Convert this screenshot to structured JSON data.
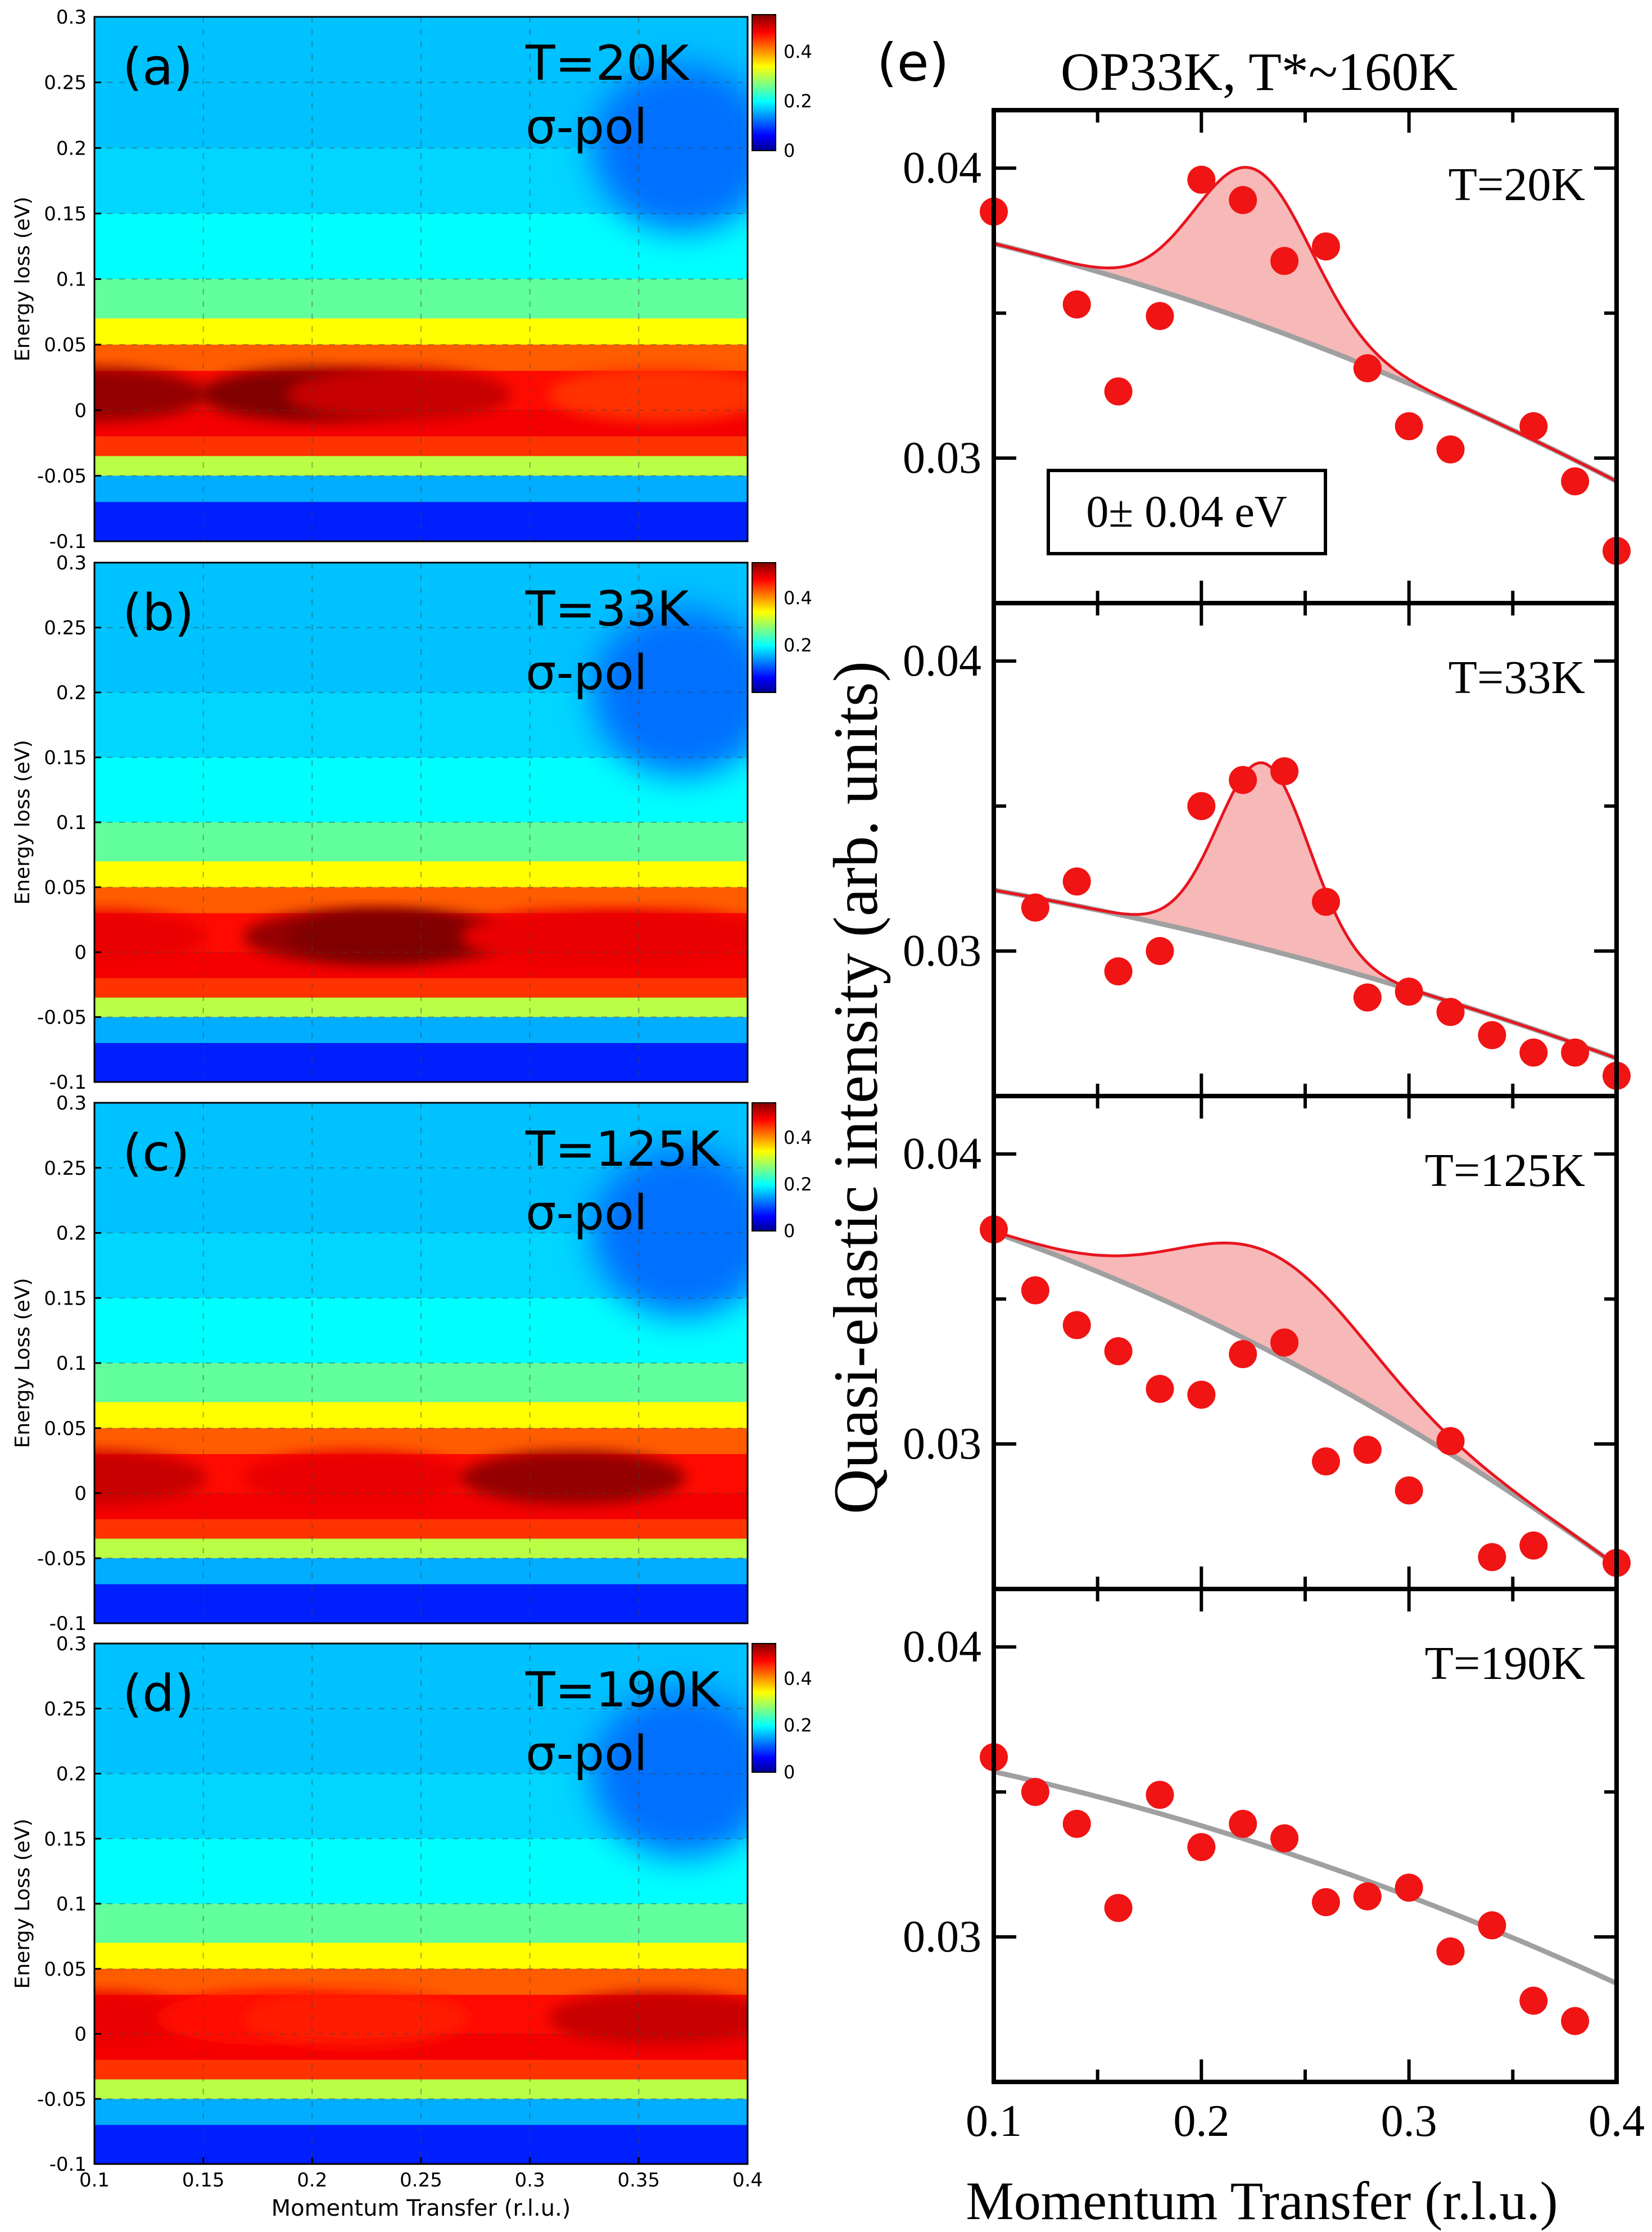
{
  "figure_label": "(e)",
  "chart_data": [
    {
      "type": "heatmap",
      "panel": "(a)",
      "temperature": "T=20K",
      "polarization": "σ-pol",
      "xlabel": "",
      "ylabel": "Energy loss (eV)",
      "xlim": [
        0.1,
        0.4
      ],
      "ylim": [
        -0.1,
        0.3
      ],
      "xticks": [],
      "yticks": [
        "-0.1",
        "-0.05",
        "0",
        "0.05",
        "0.1",
        "0.15",
        "0.2",
        "0.25",
        "0.3"
      ],
      "colorbar": {
        "range": [
          0,
          0.55
        ],
        "ticks": [
          "0",
          "0.2",
          "0.4"
        ]
      },
      "elastic_peak_centers_x": [
        0.1,
        0.2,
        0.24,
        0.36
      ],
      "elastic_peak_intensity": [
        0.55,
        0.58,
        0.52,
        0.46
      ],
      "grid": true
    },
    {
      "type": "heatmap",
      "panel": "(b)",
      "temperature": "T=33K",
      "polarization": "σ-pol",
      "xlabel": "",
      "ylabel": "Energy loss (eV)",
      "xlim": [
        0.1,
        0.4
      ],
      "ylim": [
        -0.1,
        0.3
      ],
      "xticks": [],
      "yticks": [
        "-0.1",
        "-0.05",
        "0",
        "0.05",
        "0.1",
        "0.15",
        "0.2",
        "0.25",
        "0.3"
      ],
      "colorbar": {
        "range": [
          0,
          0.55
        ],
        "ticks": [
          "0.2",
          "0.4"
        ]
      },
      "elastic_peak_centers_x": [
        0.1,
        0.22,
        0.24,
        0.32,
        0.36
      ],
      "elastic_peak_intensity": [
        0.5,
        0.55,
        0.6,
        0.5,
        0.5
      ],
      "grid": true
    },
    {
      "type": "heatmap",
      "panel": "(c)",
      "temperature": "T=125K",
      "polarization": "σ-pol",
      "xlabel": "",
      "ylabel": "Energy Loss (eV)",
      "xlim": [
        0.1,
        0.4
      ],
      "ylim": [
        -0.1,
        0.3
      ],
      "xticks": [],
      "yticks": [
        "-0.1",
        "-0.05",
        "0",
        "0.05",
        "0.1",
        "0.15",
        "0.2",
        "0.25",
        "0.3"
      ],
      "colorbar": {
        "range": [
          0,
          0.55
        ],
        "ticks": [
          "0",
          "0.2",
          "0.4"
        ]
      },
      "elastic_peak_centers_x": [
        0.1,
        0.22,
        0.32
      ],
      "elastic_peak_intensity": [
        0.52,
        0.5,
        0.55
      ],
      "grid": true
    },
    {
      "type": "heatmap",
      "panel": "(d)",
      "temperature": "T=190K",
      "polarization": "σ-pol",
      "xlabel": "Momentum Transfer (r.l.u.)",
      "ylabel": "Energy Loss (eV)",
      "xlim": [
        0.1,
        0.4
      ],
      "ylim": [
        -0.1,
        0.3
      ],
      "xticks": [
        "0.1",
        "0.15",
        "0.2",
        "0.25",
        "0.3",
        "0.35",
        "0.4"
      ],
      "yticks": [
        "-0.1",
        "-0.05",
        "0",
        "0.05",
        "0.1",
        "0.15",
        "0.2",
        "0.25",
        "0.3"
      ],
      "colorbar": {
        "range": [
          0,
          0.55
        ],
        "ticks": [
          "0",
          "0.2",
          "0.4"
        ]
      },
      "elastic_peak_centers_x": [
        0.1,
        0.18,
        0.22,
        0.36
      ],
      "elastic_peak_intensity": [
        0.5,
        0.48,
        0.47,
        0.52
      ],
      "grid": true
    },
    {
      "type": "scatter",
      "panel": "(e)",
      "title": "OP33K, T*~160K",
      "xlabel": "Momentum Transfer (r.l.u.)",
      "ylabel": "Quasi-elastic intensity (arb. units)",
      "xlim": [
        0.1,
        0.4
      ],
      "ylim": [
        0.025,
        0.042
      ],
      "xticks": [
        "0.1",
        "0.2",
        "0.3",
        "0.4"
      ],
      "yticks": [
        "0.03",
        "0.04"
      ],
      "annotation": "0± 0.04 eV",
      "subpanels": [
        {
          "label": "T=20K",
          "x": [
            0.1,
            0.14,
            0.16,
            0.18,
            0.2,
            0.22,
            0.24,
            0.26,
            0.28,
            0.3,
            0.32,
            0.36,
            0.38,
            0.4
          ],
          "y": [
            0.0385,
            0.0353,
            0.0323,
            0.0349,
            0.0396,
            0.0389,
            0.0368,
            0.0373,
            0.0331,
            0.0311,
            0.0303,
            0.0311,
            0.0292,
            0.0268
          ],
          "background": {
            "a": 0.0374,
            "b": 0.0292
          },
          "peak": {
            "center": 0.225,
            "width": 0.028,
            "amplitude": 0.0053
          }
        },
        {
          "label": "T=33K",
          "x": [
            0.12,
            0.14,
            0.16,
            0.18,
            0.2,
            0.22,
            0.24,
            0.26,
            0.28,
            0.3,
            0.32,
            0.34,
            0.36,
            0.38,
            0.4
          ],
          "y": [
            0.0315,
            0.0324,
            0.0293,
            0.03,
            0.035,
            0.0359,
            0.0362,
            0.0317,
            0.0284,
            0.0286,
            0.0279,
            0.0271,
            0.0265,
            0.0265,
            0.0257
          ],
          "background": {
            "a": 0.0321,
            "b": 0.0263
          },
          "peak": {
            "center": 0.23,
            "width": 0.022,
            "amplitude": 0.0064
          }
        },
        {
          "label": "T=125K",
          "x": [
            0.1,
            0.12,
            0.14,
            0.16,
            0.18,
            0.2,
            0.22,
            0.24,
            0.26,
            0.28,
            0.3,
            0.32,
            0.34,
            0.36,
            0.4
          ],
          "y": [
            0.0374,
            0.0353,
            0.0341,
            0.0332,
            0.0319,
            0.0317,
            0.0331,
            0.0335,
            0.0294,
            0.0298,
            0.0284,
            0.0301,
            0.0261,
            0.0265,
            0.0259
          ],
          "background": {
            "a": 0.0373,
            "b": 0.0258
          },
          "peak": {
            "center": 0.235,
            "width": 0.045,
            "amplitude": 0.0034
          }
        },
        {
          "label": "T=190K",
          "x": [
            0.1,
            0.12,
            0.14,
            0.16,
            0.18,
            0.2,
            0.22,
            0.24,
            0.26,
            0.28,
            0.3,
            0.32,
            0.34,
            0.36,
            0.38
          ],
          "y": [
            0.0362,
            0.035,
            0.0339,
            0.031,
            0.0349,
            0.0331,
            0.0339,
            0.0334,
            0.0312,
            0.0314,
            0.0317,
            0.0295,
            0.0304,
            0.0278,
            0.0271
          ],
          "background": {
            "a": 0.0357,
            "b": 0.0284
          },
          "peak": null
        }
      ]
    }
  ]
}
